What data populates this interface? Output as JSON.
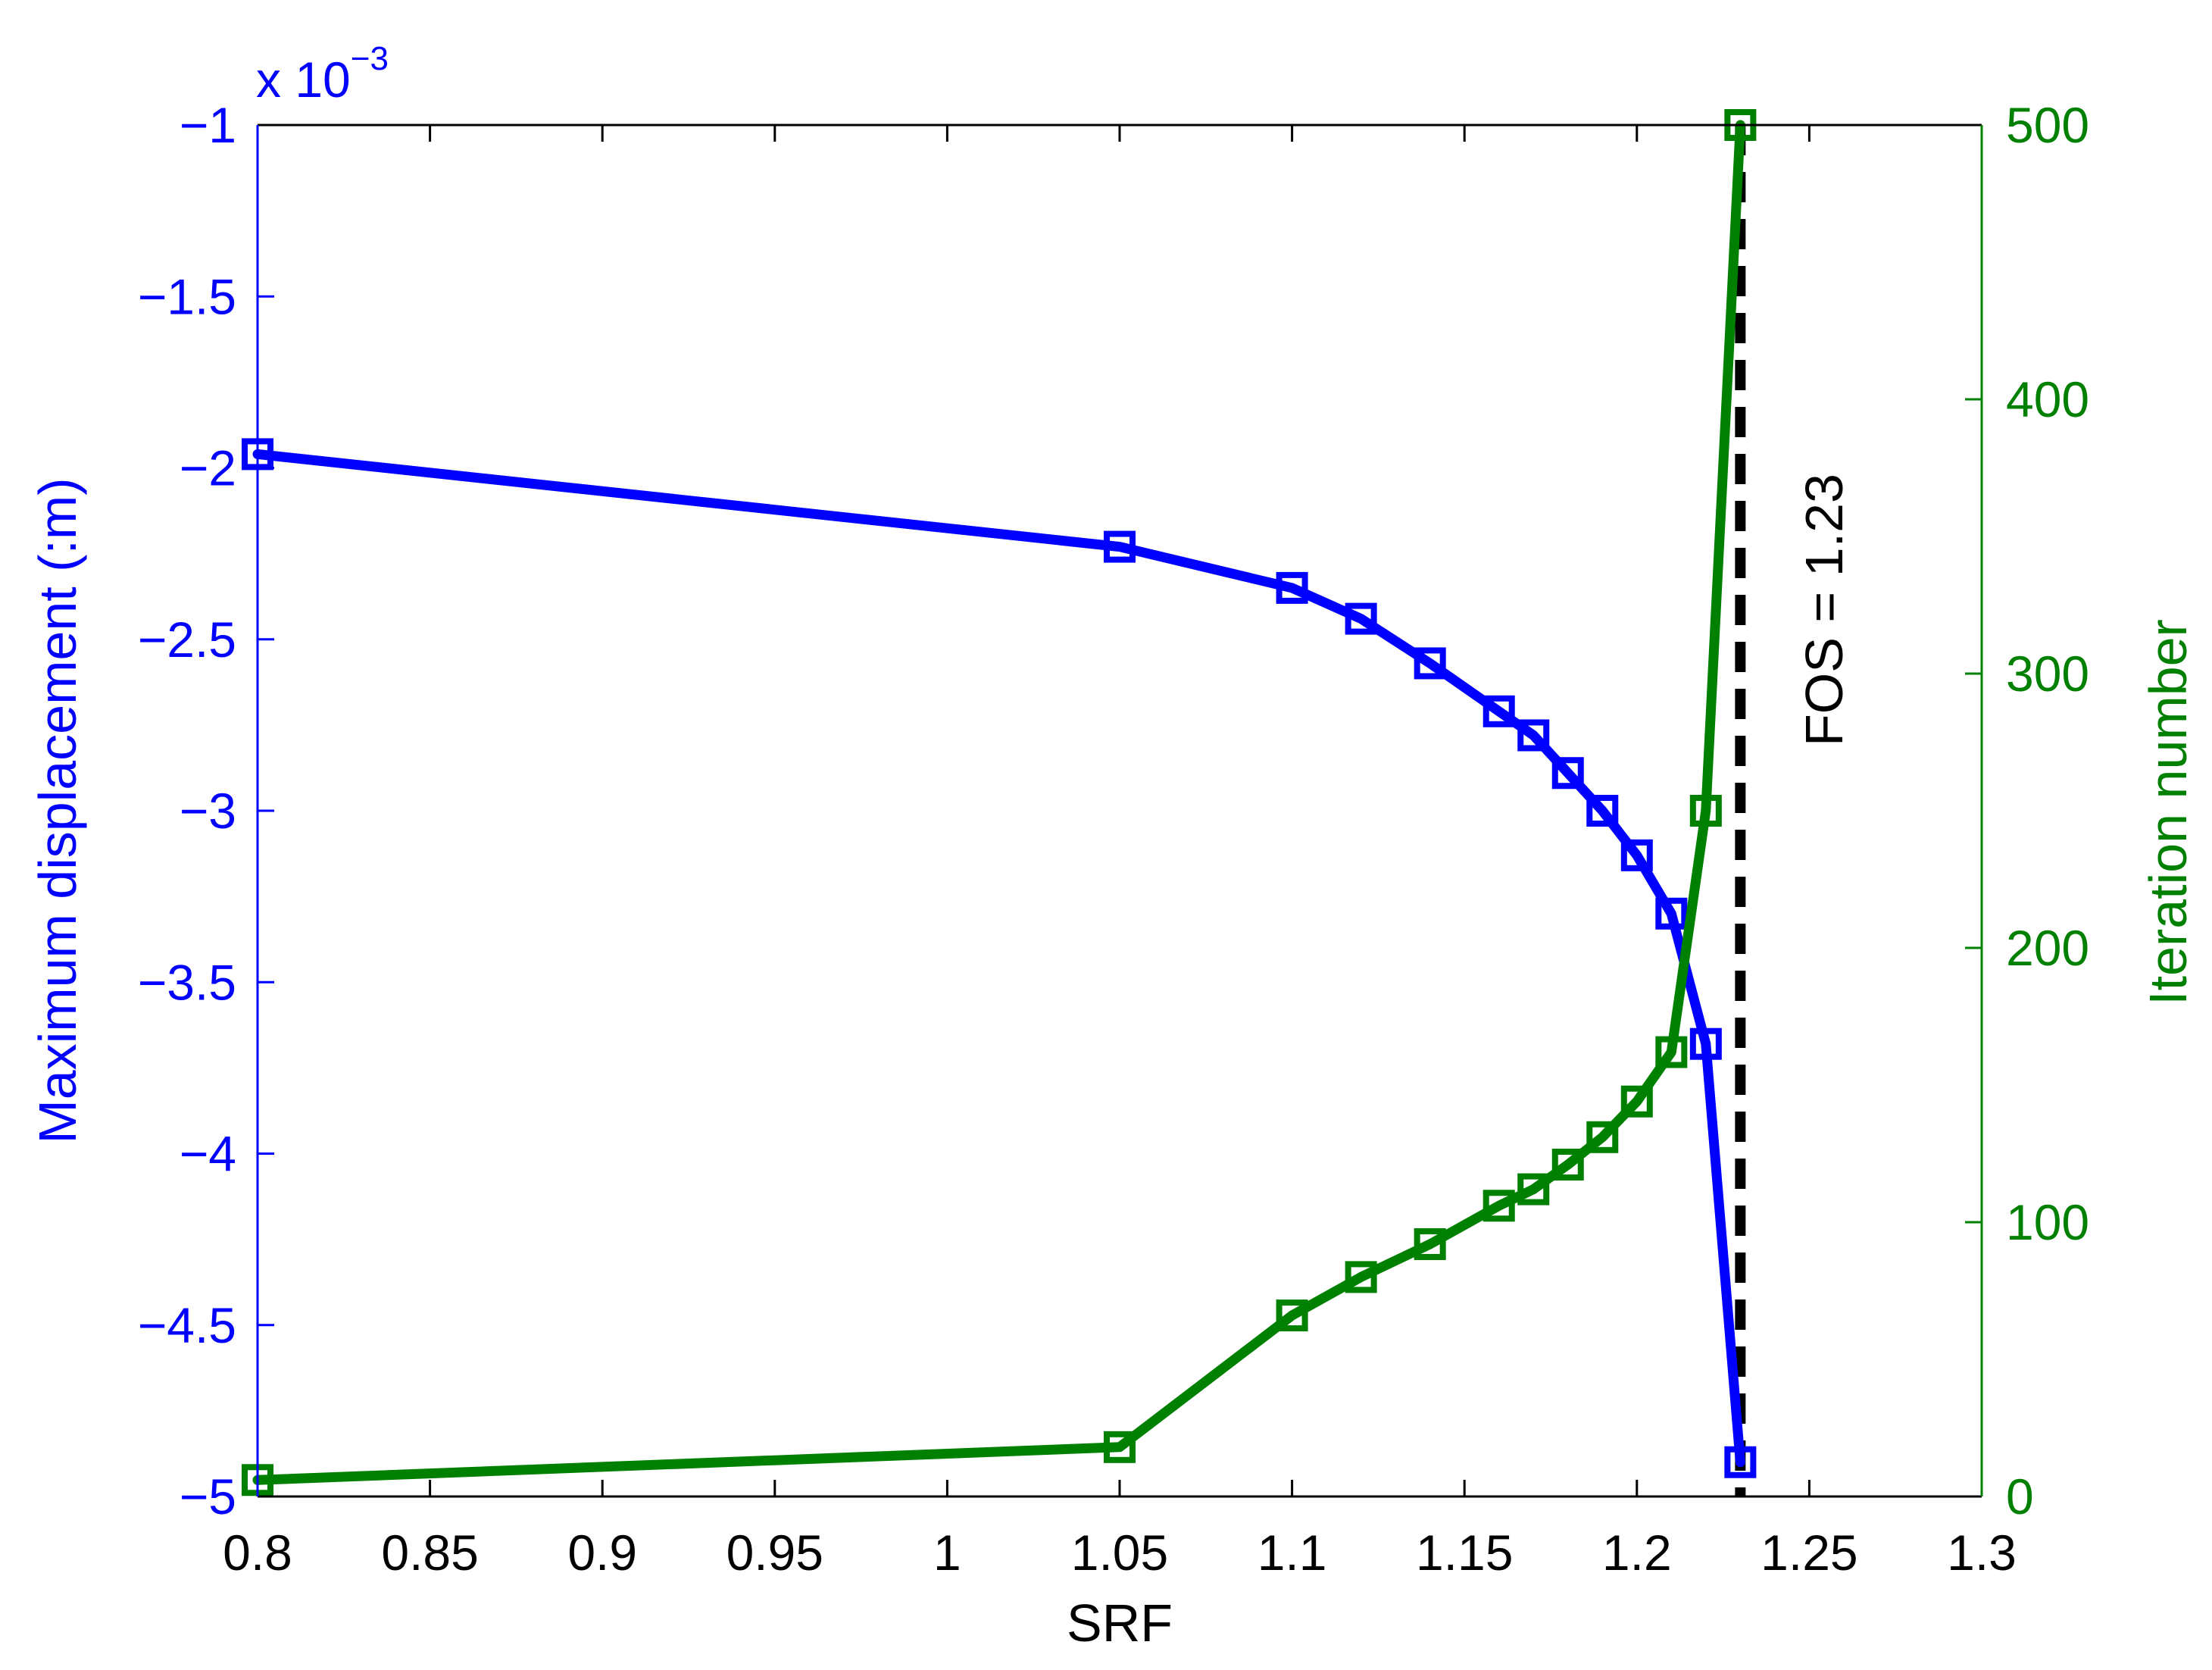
{
  "chart_data": {
    "type": "line",
    "xlabel": "SRF",
    "xlim": [
      0.8,
      1.3
    ],
    "xticks": [
      "0.8",
      "0.85",
      "0.9",
      "0.95",
      "1",
      "1.05",
      "1.1",
      "1.15",
      "1.2",
      "1.25",
      "1.3"
    ],
    "left_axis": {
      "label": "Maximum displacement (:m)",
      "multiplier_base": "x 10",
      "multiplier_exponent": "−3",
      "ylim": [
        -5,
        -1
      ],
      "ticks": [
        {
          "value": -1,
          "label": "−1"
        },
        {
          "value": -1.5,
          "label": "−1.5"
        },
        {
          "value": -2,
          "label": "−2"
        },
        {
          "value": -2.5,
          "label": "−2.5"
        },
        {
          "value": -3,
          "label": "−3"
        },
        {
          "value": -3.5,
          "label": "−3.5"
        },
        {
          "value": -4,
          "label": "−4"
        },
        {
          "value": -4.5,
          "label": "−4.5"
        },
        {
          "value": -5,
          "label": "−5"
        }
      ],
      "color": "#0000ff"
    },
    "right_axis": {
      "label": "Iteration number",
      "ylim": [
        0,
        500
      ],
      "ticks": [
        {
          "value": 0,
          "label": "0"
        },
        {
          "value": 100,
          "label": "100"
        },
        {
          "value": 200,
          "label": "200"
        },
        {
          "value": 300,
          "label": "300"
        },
        {
          "value": 400,
          "label": "400"
        },
        {
          "value": 500,
          "label": "500"
        }
      ],
      "color": "#008000"
    },
    "series": [
      {
        "axis": "left",
        "color": "#0000ff",
        "marker": "square",
        "points": [
          [
            0.8,
            -1.96
          ],
          [
            1.05,
            -2.23
          ],
          [
            1.1,
            -2.35
          ],
          [
            1.12,
            -2.44
          ],
          [
            1.14,
            -2.57
          ],
          [
            1.16,
            -2.71
          ],
          [
            1.17,
            -2.78
          ],
          [
            1.18,
            -2.89
          ],
          [
            1.19,
            -3.0
          ],
          [
            1.2,
            -3.13
          ],
          [
            1.21,
            -3.3
          ],
          [
            1.22,
            -3.68
          ],
          [
            1.23,
            -4.9
          ]
        ]
      },
      {
        "axis": "right",
        "color": "#008000",
        "marker": "square",
        "points": [
          [
            0.8,
            6
          ],
          [
            1.05,
            18
          ],
          [
            1.1,
            66
          ],
          [
            1.12,
            80
          ],
          [
            1.14,
            92
          ],
          [
            1.16,
            106
          ],
          [
            1.17,
            112
          ],
          [
            1.18,
            121
          ],
          [
            1.19,
            131
          ],
          [
            1.2,
            144
          ],
          [
            1.21,
            162
          ],
          [
            1.22,
            250
          ],
          [
            1.23,
            500
          ]
        ]
      }
    ],
    "annotation": {
      "text": "FOS = 1.23",
      "x": 1.23,
      "line_style": "dashed",
      "color": "#000000"
    }
  }
}
